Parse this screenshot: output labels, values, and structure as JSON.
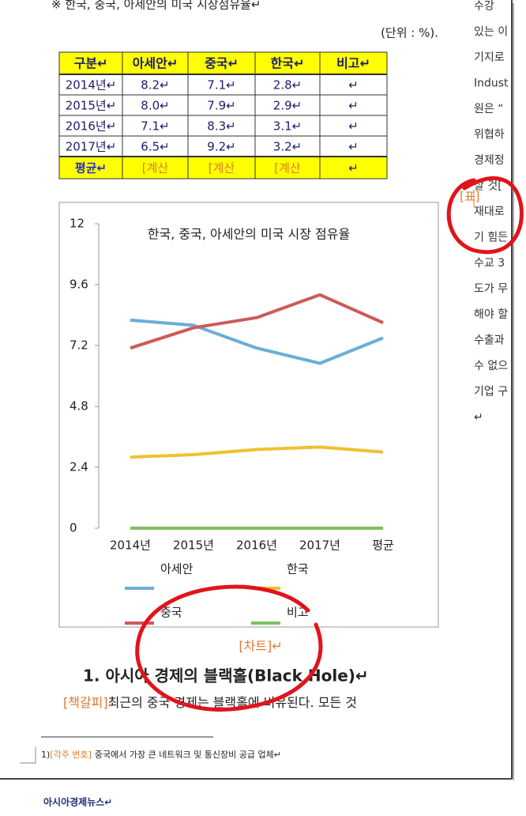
{
  "document": {
    "intro": "※ 한국, 중국, 아세안의 미국 시장점유율↵",
    "unit": "(단위 : %).",
    "table": {
      "header": [
        "구분↵",
        "아세안↵",
        "중국↵",
        "한국↵",
        "비고↵"
      ],
      "rows": [
        [
          "2014년↵",
          "8.2↵",
          "7.1↵",
          "2.8↵",
          "↵"
        ],
        [
          "2015년↵",
          "8.0↵",
          "7.9↵",
          "2.9↵",
          "↵"
        ],
        [
          "2016년↵",
          "7.1↵",
          "8.3↵",
          "3.1↵",
          "↵"
        ],
        [
          "2017년↵",
          "6.5↵",
          "9.2↵",
          "3.2↵",
          "↵"
        ],
        [
          "평균↵",
          "[계산",
          "[계산",
          "[계산",
          "↵"
        ]
      ]
    },
    "chart_caption": "[차트]↵",
    "heading": "1. 아시아 경제의 블랙홀(Black Hole)↵",
    "body_tag": "[책갈피]",
    "body": "최근의 중국 경제는 블랙홀에 비유된다. 모든 것",
    "footnote_number": "1)",
    "footnote_tag": "[각주 번호]",
    "footnote": "중국에서 가장 큰 네트워크 및 통신장비 공급 업체↵",
    "footer": "아시아경제뉴스↵",
    "table_caption": "[표]",
    "right_column": [
      "수강",
      "있는 이",
      "기지로",
      "Indust",
      "원은 “",
      "위협하",
      "경제정",
      "살 것[",
      "재대로",
      "기 힘든",
      "수교 3",
      "도가 무",
      "해야 할",
      "수출과",
      "수 없으",
      "기업 구",
      "↵"
    ]
  },
  "chart_data": {
    "type": "line",
    "title": "한국, 중국, 아세안의 미국 시장 점유율",
    "categories": [
      "2014년",
      "2015년",
      "2016년",
      "2017년",
      "평균"
    ],
    "ylim": [
      0,
      12
    ],
    "yticks": [
      0,
      2.4,
      4.8,
      7.2,
      9.6,
      12
    ],
    "series": [
      {
        "name": "아세안",
        "color": "#6aaed6",
        "values": [
          8.2,
          8.0,
          7.1,
          6.5,
          7.5
        ]
      },
      {
        "name": "한국",
        "color": "#f0c030",
        "values": [
          2.8,
          2.9,
          3.1,
          3.2,
          3.0
        ]
      },
      {
        "name": "중국",
        "color": "#cd5a5a",
        "values": [
          7.1,
          7.9,
          8.3,
          9.2,
          8.1
        ]
      },
      {
        "name": "비고",
        "color": "#7dc160",
        "values": [
          0,
          0,
          0,
          0,
          0
        ]
      }
    ]
  }
}
